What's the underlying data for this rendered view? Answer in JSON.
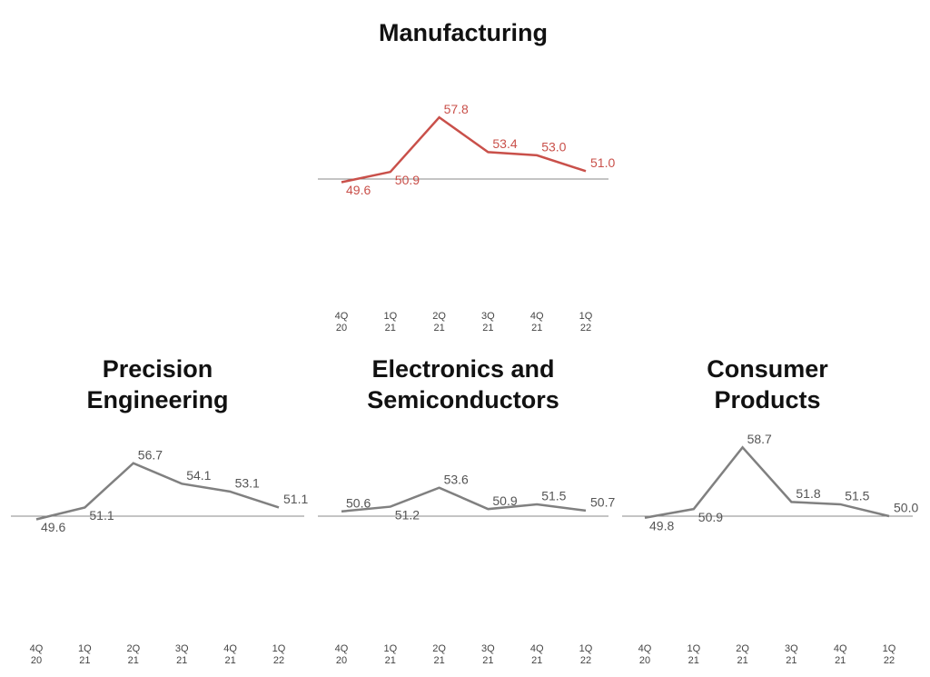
{
  "chart_data": [
    {
      "type": "line",
      "title": [
        "Manufacturing"
      ],
      "categories": [
        [
          "4Q",
          "20"
        ],
        [
          "1Q",
          "21"
        ],
        [
          "2Q",
          "21"
        ],
        [
          "3Q",
          "21"
        ],
        [
          "4Q",
          "21"
        ],
        [
          "1Q",
          "22"
        ]
      ],
      "values": [
        49.6,
        50.9,
        57.8,
        53.4,
        53.0,
        51.0
      ],
      "value_labels": [
        "49.6",
        "50.9",
        "57.8",
        "53.4",
        "53.0",
        "51.0"
      ],
      "color": "#c9504a",
      "reference_line": 50,
      "ylim": [
        40,
        60
      ]
    },
    {
      "type": "line",
      "title": [
        "Precision",
        "Engineering"
      ],
      "categories": [
        [
          "4Q",
          "20"
        ],
        [
          "1Q",
          "21"
        ],
        [
          "2Q",
          "21"
        ],
        [
          "3Q",
          "21"
        ],
        [
          "4Q",
          "21"
        ],
        [
          "1Q",
          "22"
        ]
      ],
      "values": [
        49.6,
        51.1,
        56.7,
        54.1,
        53.1,
        51.1
      ],
      "value_labels": [
        "49.6",
        "51.1",
        "56.7",
        "54.1",
        "53.1",
        "51.1"
      ],
      "color": "#808080",
      "reference_line": 50,
      "ylim": [
        40,
        60
      ]
    },
    {
      "type": "line",
      "title": [
        "Electronics and",
        "Semiconductors"
      ],
      "categories": [
        [
          "4Q",
          "20"
        ],
        [
          "1Q",
          "21"
        ],
        [
          "2Q",
          "21"
        ],
        [
          "3Q",
          "21"
        ],
        [
          "4Q",
          "21"
        ],
        [
          "1Q",
          "22"
        ]
      ],
      "values": [
        50.6,
        51.2,
        53.6,
        50.9,
        51.5,
        50.7
      ],
      "value_labels": [
        "50.6",
        "51.2",
        "53.6",
        "50.9",
        "51.5",
        "50.7"
      ],
      "color": "#808080",
      "reference_line": 50,
      "ylim": [
        40,
        60
      ]
    },
    {
      "type": "line",
      "title": [
        "Consumer",
        "Products"
      ],
      "categories": [
        [
          "4Q",
          "20"
        ],
        [
          "1Q",
          "21"
        ],
        [
          "2Q",
          "21"
        ],
        [
          "3Q",
          "21"
        ],
        [
          "4Q",
          "21"
        ],
        [
          "1Q",
          "22"
        ]
      ],
      "values": [
        49.8,
        50.9,
        58.7,
        51.8,
        51.5,
        50.0
      ],
      "value_labels": [
        "49.8",
        "50.9",
        "58.7",
        "51.8",
        "51.5",
        "50.0"
      ],
      "color": "#808080",
      "reference_line": 50,
      "ylim": [
        40,
        60
      ]
    }
  ]
}
